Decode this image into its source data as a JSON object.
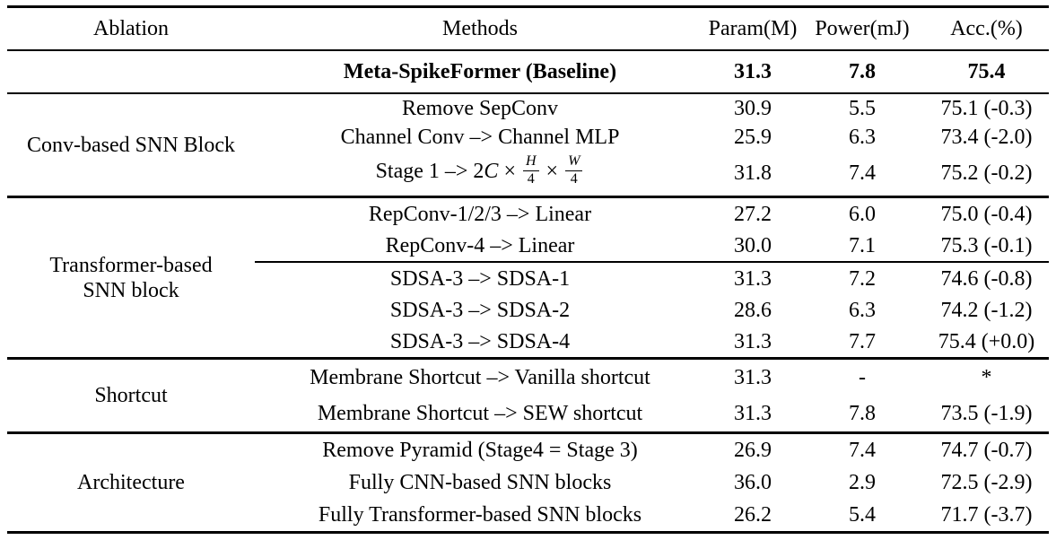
{
  "theme": {
    "background": "#ffffff",
    "text_color": "#000000",
    "rule_color": "#000000"
  },
  "table": {
    "columns": [
      "Ablation",
      "Methods",
      "Param(M)",
      "Power(mJ)",
      "Acc.(%)"
    ],
    "baseline": {
      "method": "Meta-SpikeFormer (Baseline)",
      "param": "31.3",
      "power": "7.8",
      "acc": "75.4"
    },
    "math": {
      "prefix": "Stage 1 –> 2",
      "var_c": "C",
      "times": "×",
      "num_h": "H",
      "num_w": "W",
      "den_four": "4"
    },
    "sections": [
      {
        "ablation": "Conv-based SNN Block",
        "rows": [
          {
            "method": "Remove SepConv",
            "param": "30.9",
            "power": "5.5",
            "acc": "75.1 (-0.3)"
          },
          {
            "method": "Channel Conv –> Channel MLP",
            "param": "25.9",
            "power": "6.3",
            "acc": "73.4 (-2.0)"
          },
          {
            "method": "Stage 1 –> 2C × H/4 × W/4",
            "param": "31.8",
            "power": "7.4",
            "acc": "75.2 (-0.2)"
          }
        ]
      },
      {
        "ablation_line1": "Transformer-based",
        "ablation_line2": "SNN block",
        "rows": [
          {
            "method": "RepConv-1/2/3 –> Linear",
            "param": "27.2",
            "power": "6.0",
            "acc": "75.0 (-0.4)"
          },
          {
            "method": "RepConv-4 –> Linear",
            "param": "30.0",
            "power": "7.1",
            "acc": "75.3 (-0.1)"
          },
          {
            "method": "SDSA-3 –> SDSA-1",
            "param": "31.3",
            "power": "7.2",
            "acc": "74.6 (-0.8)"
          },
          {
            "method": "SDSA-3 –> SDSA-2",
            "param": "28.6",
            "power": "6.3",
            "acc": "74.2 (-1.2)"
          },
          {
            "method": "SDSA-3 –> SDSA-4",
            "param": "31.3",
            "power": "7.7",
            "acc": "75.4 (+0.0)"
          }
        ]
      },
      {
        "ablation": "Shortcut",
        "rows": [
          {
            "method": "Membrane Shortcut –> Vanilla shortcut",
            "param": "31.3",
            "power": "-",
            "acc": "*"
          },
          {
            "method": "Membrane Shortcut –> SEW shortcut",
            "param": "31.3",
            "power": "7.8",
            "acc": "73.5 (-1.9)"
          }
        ]
      },
      {
        "ablation": "Architecture",
        "rows": [
          {
            "method": "Remove Pyramid (Stage4 = Stage 3)",
            "param": "26.9",
            "power": "7.4",
            "acc": "74.7 (-0.7)"
          },
          {
            "method": "Fully CNN-based SNN blocks",
            "param": "36.0",
            "power": "2.9",
            "acc": "72.5 (-2.9)"
          },
          {
            "method": "Fully Transformer-based SNN blocks",
            "param": "26.2",
            "power": "5.4",
            "acc": "71.7 (-3.7)"
          }
        ]
      }
    ]
  }
}
